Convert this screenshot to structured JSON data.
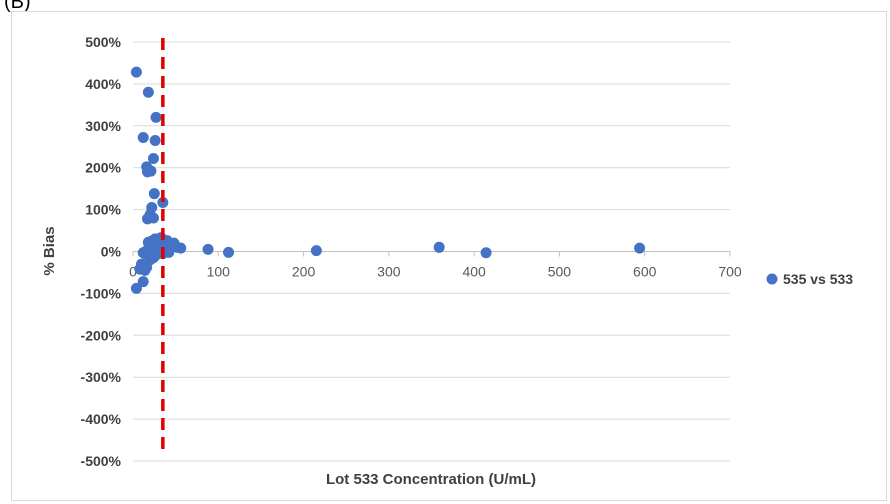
{
  "header": {
    "label": "(B)"
  },
  "chart_data": {
    "type": "scatter",
    "xlabel": "Lot 533 Concentration (U/mL)",
    "ylabel": "% Bias",
    "xlim": [
      0,
      700
    ],
    "ylim": [
      -500,
      500
    ],
    "x_ticks": [
      "0",
      "100",
      "200",
      "300",
      "400",
      "500",
      "600",
      "700"
    ],
    "y_ticks": [
      "500%",
      "400%",
      "300%",
      "200%",
      "100%",
      "0%",
      "-100%",
      "-200%",
      "-300%",
      "-400%",
      "-500%"
    ],
    "grid": "horizontal",
    "legend_position": "right",
    "reference_line": {
      "x": 35,
      "style": "dashed",
      "color": "#e00000"
    },
    "colors": {
      "series": "#4472c4",
      "grid": "#d9d9d9",
      "reference": "#e00000"
    },
    "series": [
      {
        "name": "535 vs 533",
        "x": [
          4,
          18,
          27,
          12,
          26,
          24,
          16,
          21,
          17,
          25,
          35,
          22,
          20,
          17,
          24,
          19,
          30,
          25,
          19,
          33,
          26,
          29,
          22,
          18,
          36,
          42,
          28,
          35,
          26,
          15,
          12,
          10,
          8,
          14,
          16,
          20,
          24,
          48,
          52,
          56,
          88,
          112,
          215,
          359,
          414,
          594,
          4,
          12,
          32,
          30,
          40,
          44,
          22,
          14,
          18
        ],
        "y": [
          428,
          380,
          320,
          272,
          265,
          222,
          202,
          192,
          190,
          138,
          117,
          105,
          88,
          78,
          80,
          10,
          15,
          20,
          12,
          33,
          30,
          25,
          2,
          5,
          12,
          -2,
          8,
          -5,
          -10,
          0,
          -3,
          -30,
          -42,
          -45,
          -38,
          -20,
          -15,
          20,
          10,
          8,
          5,
          -2,
          2,
          10,
          -3,
          8,
          -88,
          -72,
          5,
          28,
          26,
          15,
          25,
          -5,
          22
        ]
      }
    ]
  }
}
